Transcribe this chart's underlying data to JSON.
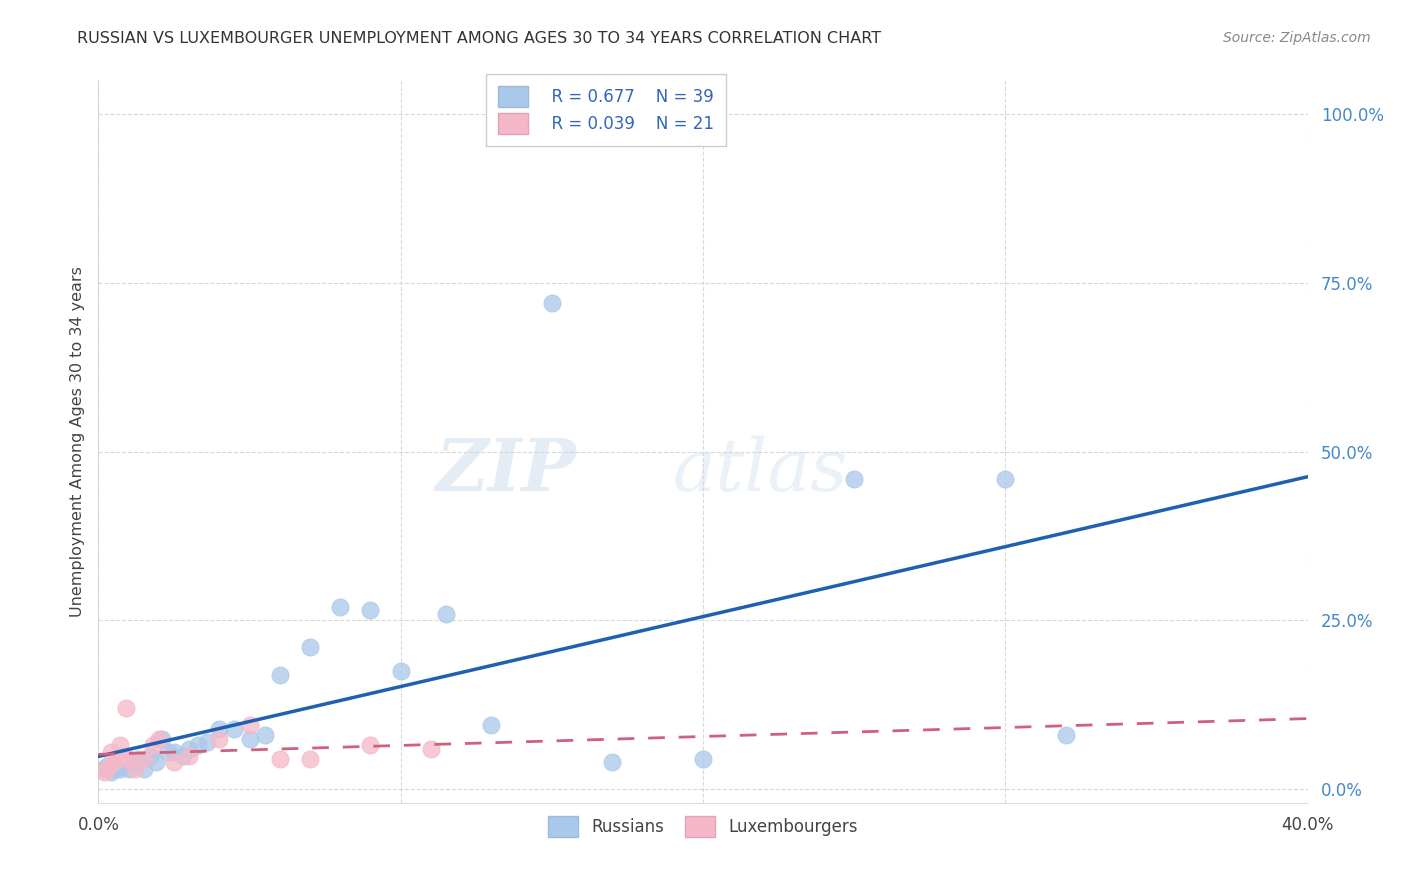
{
  "title": "RUSSIAN VS LUXEMBOURGER UNEMPLOYMENT AMONG AGES 30 TO 34 YEARS CORRELATION CHART",
  "source": "Source: ZipAtlas.com",
  "ylabel": "Unemployment Among Ages 30 to 34 years",
  "xlim": [
    0.0,
    0.4
  ],
  "ylim": [
    -0.02,
    1.05
  ],
  "yticks": [
    0.0,
    0.25,
    0.5,
    0.75,
    1.0
  ],
  "ytick_labels": [
    "0.0%",
    "25.0%",
    "50.0%",
    "75.0%",
    "100.0%"
  ],
  "xticks": [
    0.0,
    0.1,
    0.2,
    0.3,
    0.4
  ],
  "xtick_labels": [
    "0.0%",
    "",
    "",
    "",
    "40.0%"
  ],
  "russians_R": "0.677",
  "russians_N": "39",
  "luxembourgers_R": "0.039",
  "luxembourgers_N": "21",
  "russian_color": "#aac8ea",
  "russian_edge_color": "#aac8ea",
  "russian_line_color": "#2060b0",
  "luxembourger_color": "#f5b8c8",
  "luxembourger_edge_color": "#f5b8c8",
  "luxembourger_line_color": "#d06080",
  "watermark_zip": "ZIP",
  "watermark_atlas": "atlas",
  "russians_x": [
    0.002,
    0.003,
    0.004,
    0.005,
    0.006,
    0.007,
    0.008,
    0.009,
    0.01,
    0.011,
    0.012,
    0.013,
    0.015,
    0.017,
    0.019,
    0.021,
    0.023,
    0.025,
    0.028,
    0.03,
    0.033,
    0.036,
    0.04,
    0.045,
    0.05,
    0.055,
    0.06,
    0.07,
    0.08,
    0.09,
    0.1,
    0.115,
    0.13,
    0.15,
    0.17,
    0.2,
    0.25,
    0.3,
    0.32
  ],
  "russians_y": [
    0.03,
    0.035,
    0.025,
    0.03,
    0.04,
    0.03,
    0.035,
    0.04,
    0.03,
    0.04,
    0.035,
    0.045,
    0.03,
    0.05,
    0.04,
    0.075,
    0.055,
    0.055,
    0.05,
    0.06,
    0.065,
    0.07,
    0.09,
    0.09,
    0.075,
    0.08,
    0.17,
    0.21,
    0.27,
    0.265,
    0.175,
    0.26,
    0.095,
    0.72,
    0.04,
    0.045,
    0.46,
    0.46,
    0.08
  ],
  "luxembourgers_x": [
    0.002,
    0.003,
    0.004,
    0.005,
    0.006,
    0.007,
    0.008,
    0.009,
    0.01,
    0.012,
    0.015,
    0.018,
    0.02,
    0.025,
    0.03,
    0.04,
    0.05,
    0.06,
    0.07,
    0.09,
    0.11
  ],
  "luxembourgers_y": [
    0.025,
    0.03,
    0.055,
    0.04,
    0.045,
    0.065,
    0.05,
    0.12,
    0.045,
    0.03,
    0.045,
    0.065,
    0.075,
    0.04,
    0.05,
    0.075,
    0.095,
    0.045,
    0.045,
    0.065,
    0.06
  ],
  "background_color": "#ffffff",
  "grid_color": "#d0d0d0",
  "title_color": "#333333",
  "source_color": "#888888",
  "ylabel_color": "#444444",
  "ytick_color": "#4488cc",
  "xtick_color": "#444444",
  "legend_edge_color": "#cccccc",
  "legend_text_color": "#3366bb"
}
